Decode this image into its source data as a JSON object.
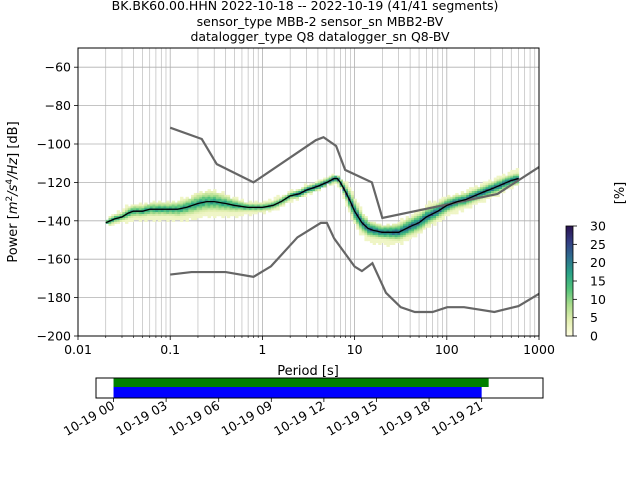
{
  "chart_data": {
    "type": "heatmap",
    "title_lines": [
      "BK.BK60.00.HHN   2022-10-18 -- 2022-10-19  (41/41 segments)",
      "sensor_type MBB-2 sensor_sn MBB2-BV",
      "datalogger_type Q8 datalogger_sn Q8-BV"
    ],
    "xlabel": "Period [s]",
    "ylabel": "Power [m²/s⁴/Hz] [dB]",
    "ylabel_parts": {
      "pre": "Power [",
      "m": "m",
      "exp2": "2",
      "s": "/s",
      "exp4": "4",
      "hz": "/Hz",
      "post": "] [dB]"
    },
    "x_scale": "log",
    "xlim": [
      0.01,
      1000
    ],
    "ylim": [
      -200,
      -50
    ],
    "x_ticks": [
      {
        "value": 0.01,
        "label": "0.01"
      },
      {
        "value": 0.1,
        "label": "0.1"
      },
      {
        "value": 1,
        "label": "1"
      },
      {
        "value": 10,
        "label": "10"
      },
      {
        "value": 100,
        "label": "100"
      },
      {
        "value": 1000,
        "label": "1000"
      }
    ],
    "y_ticks": [
      {
        "value": -60,
        "label": "−60"
      },
      {
        "value": -80,
        "label": "−80"
      },
      {
        "value": -100,
        "label": "−100"
      },
      {
        "value": -120,
        "label": "−120"
      },
      {
        "value": -140,
        "label": "−140"
      },
      {
        "value": -160,
        "label": "−160"
      },
      {
        "value": -180,
        "label": "−180"
      },
      {
        "value": -200,
        "label": "−200"
      }
    ],
    "grid": true,
    "noise_model_high": {
      "name": "",
      "x": [
        0.1,
        0.22,
        0.32,
        0.8,
        3.8,
        4.6,
        6.3,
        7.9,
        15.4,
        20,
        354.8,
        1000
      ],
      "y": [
        -91.5,
        -97.4,
        -110.5,
        -120,
        -98,
        -96.5,
        -101,
        -113.5,
        -120,
        -138.5,
        -126,
        -112
      ]
    },
    "noise_model_low": {
      "name": "",
      "x": [
        0.1,
        0.17,
        0.4,
        0.8,
        1.24,
        2.4,
        4.3,
        5,
        6,
        10,
        12,
        15.6,
        21.9,
        31.6,
        45,
        70,
        101,
        154,
        328,
        600,
        1000
      ],
      "y": [
        -168,
        -166.7,
        -166.7,
        -169.2,
        -163.7,
        -148.6,
        -141.1,
        -141.1,
        -149.2,
        -163.8,
        -166.2,
        -162.1,
        -177.5,
        -185,
        -187.5,
        -187.5,
        -185,
        -185,
        -187.5,
        -184.4,
        -178
      ]
    },
    "mean_psd": {
      "name": "",
      "x": [
        0.02,
        0.025,
        0.03,
        0.035,
        0.04,
        0.05,
        0.06,
        0.08,
        0.1,
        0.12,
        0.15,
        0.2,
        0.25,
        0.3,
        0.4,
        0.5,
        0.7,
        1,
        1.3,
        1.6,
        2,
        2.5,
        3,
        4,
        5,
        6,
        6.5,
        7,
        8,
        9,
        10,
        12,
        14,
        16,
        20,
        25,
        30,
        40,
        50,
        60,
        80,
        100,
        130,
        160,
        200,
        250,
        320,
        400,
        500,
        600
      ],
      "y": [
        -141,
        -139,
        -138,
        -136,
        -135,
        -135,
        -134,
        -134,
        -134,
        -134,
        -133,
        -131,
        -130,
        -130,
        -131,
        -132,
        -133,
        -133,
        -132,
        -130,
        -127,
        -126,
        -124,
        -122,
        -120,
        -118,
        -118,
        -120,
        -125,
        -130,
        -135,
        -141,
        -144,
        -145,
        -146,
        -146,
        -146,
        -143,
        -141,
        -138,
        -135,
        -132,
        -130,
        -129,
        -127,
        -125,
        -123,
        -121,
        -119,
        -118
      ]
    },
    "spread": {
      "x": [
        0.02,
        0.025,
        0.03,
        0.035,
        0.04,
        0.05,
        0.06,
        0.08,
        0.1,
        0.12,
        0.15,
        0.2,
        0.25,
        0.3,
        0.4,
        0.5,
        0.7,
        1,
        1.3,
        1.6,
        2,
        2.5,
        3,
        4,
        5,
        6,
        6.5,
        7,
        8,
        9,
        10,
        12,
        14,
        16,
        20,
        25,
        30,
        40,
        50,
        60,
        80,
        100,
        130,
        160,
        200,
        250,
        320,
        400,
        500,
        600
      ],
      "lo": [
        -142,
        -141,
        -140,
        -140,
        -139,
        -139,
        -139,
        -139,
        -139,
        -139,
        -139,
        -138,
        -137,
        -137,
        -137,
        -137,
        -136,
        -135,
        -134,
        -132,
        -129,
        -128,
        -126,
        -123,
        -121,
        -120,
        -120,
        -123,
        -130,
        -136,
        -141,
        -147,
        -150,
        -151,
        -151,
        -152,
        -151,
        -149,
        -146,
        -143,
        -140,
        -137,
        -135,
        -133,
        -131,
        -129,
        -127,
        -125,
        -122,
        -120
      ],
      "hi": [
        -140,
        -137,
        -135,
        -133,
        -132,
        -132,
        -131,
        -131,
        -131,
        -130,
        -129,
        -126,
        -125,
        -125,
        -127,
        -129,
        -131,
        -131,
        -129,
        -128,
        -125,
        -124,
        -122,
        -120,
        -118,
        -117,
        -117,
        -118,
        -121,
        -124,
        -128,
        -136,
        -140,
        -142,
        -143,
        -143,
        -141,
        -138,
        -135,
        -132,
        -130,
        -128,
        -127,
        -125,
        -123,
        -121,
        -119,
        -117,
        -115,
        -113
      ]
    },
    "colorbar": {
      "label": "[%]",
      "min": 0,
      "max": 30,
      "ticks": [
        {
          "value": 0,
          "label": "0"
        },
        {
          "value": 5,
          "label": "5"
        },
        {
          "value": 10,
          "label": "10"
        },
        {
          "value": 15,
          "label": "15"
        },
        {
          "value": 20,
          "label": "20"
        },
        {
          "value": 25,
          "label": "25"
        },
        {
          "value": 30,
          "label": "30"
        }
      ],
      "cmap_stops": [
        "#fefde0",
        "#e3efb1",
        "#a9dc8c",
        "#52c27a",
        "#2aa287",
        "#2e6e8f",
        "#333d82",
        "#2a1250"
      ]
    },
    "coverage": {
      "hours_range": [
        -1,
        24.5
      ],
      "ticks": [
        {
          "hour": 0,
          "label": "10-19 00"
        },
        {
          "hour": 3,
          "label": "10-19 03"
        },
        {
          "hour": 6,
          "label": "10-19 06"
        },
        {
          "hour": 9,
          "label": "10-19 09"
        },
        {
          "hour": 12,
          "label": "10-19 12"
        },
        {
          "hour": 15,
          "label": "10-19 15"
        },
        {
          "hour": 18,
          "label": "10-19 18"
        },
        {
          "hour": 21,
          "label": "10-19 21"
        }
      ],
      "bars": [
        {
          "start": 0,
          "end": 21.4,
          "color": "#008000"
        },
        {
          "start": 0,
          "end": 21.0,
          "color": "#0000ff"
        }
      ]
    },
    "colors": {
      "noise_model": "#666666",
      "mean": "#000000",
      "grid": "#b0b0b0"
    }
  }
}
